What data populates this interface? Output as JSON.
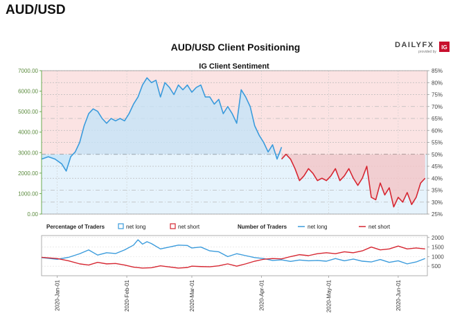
{
  "page": {
    "title": "AUD/USD"
  },
  "brand": {
    "name": "DAILYFX",
    "sub": "provided by",
    "badge": "IG"
  },
  "chart_data": [
    {
      "type": "line",
      "title": "AUD/USD Client Positioning",
      "subtitle": "IG Client Sentiment",
      "price_axis": {
        "ticks": [
          "0.00",
          "1000.00",
          "2000.00",
          "3000.00",
          "4000.00",
          "5000.00",
          "6000.00",
          "7000.00"
        ],
        "ylim": [
          0,
          7000
        ]
      },
      "pct_axis": {
        "ticks": [
          "25%",
          "30%",
          "35%",
          "40%",
          "45%",
          "50%",
          "55%",
          "60%",
          "65%",
          "70%",
          "75%",
          "80%",
          "85%"
        ],
        "ylim": [
          25,
          85
        ]
      },
      "x_ticks": [
        "2020-Jan-01",
        "2020-Feb-01",
        "2020-Mar-01",
        "2020-Apr-01",
        "2020-May-01",
        "2020-Jun-01"
      ],
      "x_tick_days": [
        0,
        31,
        60,
        91,
        121,
        152
      ],
      "xlim_days": [
        -7,
        165
      ],
      "grid": true,
      "series": [
        {
          "name": "Percentage net long",
          "color_fill": "#daedfa",
          "color_line": "#3a9bdc",
          "points": [
            [
              -7,
              48
            ],
            [
              -4,
              49
            ],
            [
              -1,
              48
            ],
            [
              2,
              46
            ],
            [
              4,
              43
            ],
            [
              6,
              49
            ],
            [
              8,
              51
            ],
            [
              10,
              55
            ],
            [
              12,
              62
            ],
            [
              14,
              67
            ],
            [
              16,
              69
            ],
            [
              18,
              68
            ],
            [
              20,
              65
            ],
            [
              22,
              63
            ],
            [
              24,
              65
            ],
            [
              26,
              64
            ],
            [
              28,
              65
            ],
            [
              30,
              64
            ],
            [
              32,
              67
            ],
            [
              34,
              71
            ],
            [
              36,
              74
            ],
            [
              38,
              79
            ],
            [
              40,
              82
            ],
            [
              42,
              80
            ],
            [
              44,
              81
            ],
            [
              46,
              74
            ],
            [
              48,
              80
            ],
            [
              50,
              78
            ],
            [
              52,
              75
            ],
            [
              54,
              79
            ],
            [
              56,
              77
            ],
            [
              58,
              79
            ],
            [
              60,
              76
            ],
            [
              62,
              78
            ],
            [
              64,
              79
            ],
            [
              66,
              74
            ],
            [
              68,
              74
            ],
            [
              70,
              71
            ],
            [
              72,
              73
            ],
            [
              74,
              67
            ],
            [
              76,
              70
            ],
            [
              78,
              67
            ],
            [
              80,
              63
            ],
            [
              82,
              77
            ],
            [
              84,
              74
            ],
            [
              86,
              70
            ],
            [
              88,
              62
            ],
            [
              90,
              58
            ],
            [
              92,
              55
            ],
            [
              94,
              51
            ],
            [
              96,
              54
            ],
            [
              98,
              48
            ],
            [
              100,
              53
            ]
          ]
        },
        {
          "name": "Percentage net short",
          "color_fill": "#fadada",
          "color_line": "#d62631",
          "points": [
            [
              100,
              48
            ],
            [
              102,
              50
            ],
            [
              104,
              48
            ],
            [
              106,
              44
            ],
            [
              108,
              39
            ],
            [
              110,
              41
            ],
            [
              112,
              44
            ],
            [
              114,
              42
            ],
            [
              116,
              39
            ],
            [
              118,
              40
            ],
            [
              120,
              39
            ],
            [
              122,
              41
            ],
            [
              124,
              44
            ],
            [
              126,
              39
            ],
            [
              128,
              41
            ],
            [
              130,
              44
            ],
            [
              132,
              40
            ],
            [
              134,
              37
            ],
            [
              136,
              40
            ],
            [
              138,
              45
            ],
            [
              140,
              32
            ],
            [
              142,
              31
            ],
            [
              144,
              38
            ],
            [
              146,
              33
            ],
            [
              148,
              36
            ],
            [
              150,
              28
            ],
            [
              152,
              32
            ],
            [
              154,
              30
            ],
            [
              156,
              34
            ],
            [
              158,
              29
            ],
            [
              160,
              32
            ],
            [
              162,
              38
            ],
            [
              164,
              40
            ]
          ]
        }
      ],
      "lower": {
        "legend": {
          "pct_label": "Percentage of Traders",
          "pct_long": "net long",
          "pct_short": "net short",
          "num_label": "Number of Traders",
          "num_long": "net long",
          "num_short": "net short"
        },
        "y_ticks": [
          "500",
          "1000",
          "1500",
          "2000"
        ],
        "ylim": [
          0,
          2100
        ],
        "series": [
          {
            "name": "net long",
            "color": "#3a9bdc",
            "points": [
              [
                -7,
                950
              ],
              [
                0,
                860
              ],
              [
                5,
                960
              ],
              [
                10,
                1150
              ],
              [
                14,
                1350
              ],
              [
                18,
                1080
              ],
              [
                22,
                1200
              ],
              [
                26,
                1160
              ],
              [
                30,
                1350
              ],
              [
                34,
                1600
              ],
              [
                36,
                1880
              ],
              [
                38,
                1650
              ],
              [
                40,
                1780
              ],
              [
                42,
                1680
              ],
              [
                46,
                1400
              ],
              [
                50,
                1500
              ],
              [
                54,
                1600
              ],
              [
                58,
                1580
              ],
              [
                60,
                1450
              ],
              [
                64,
                1500
              ],
              [
                68,
                1300
              ],
              [
                72,
                1250
              ],
              [
                76,
                1000
              ],
              [
                80,
                1150
              ],
              [
                84,
                1050
              ],
              [
                88,
                950
              ],
              [
                92,
                900
              ],
              [
                96,
                800
              ],
              [
                100,
                830
              ],
              [
                104,
                750
              ],
              [
                108,
                820
              ],
              [
                112,
                780
              ],
              [
                116,
                800
              ],
              [
                120,
                760
              ],
              [
                124,
                900
              ],
              [
                128,
                780
              ],
              [
                132,
                870
              ],
              [
                136,
                760
              ],
              [
                140,
                720
              ],
              [
                144,
                850
              ],
              [
                148,
                700
              ],
              [
                152,
                780
              ],
              [
                156,
                620
              ],
              [
                160,
                720
              ],
              [
                164,
                900
              ]
            ]
          },
          {
            "name": "net short",
            "color": "#d62631",
            "points": [
              [
                -7,
                960
              ],
              [
                0,
                900
              ],
              [
                5,
                780
              ],
              [
                10,
                620
              ],
              [
                14,
                560
              ],
              [
                18,
                700
              ],
              [
                22,
                620
              ],
              [
                26,
                640
              ],
              [
                30,
                560
              ],
              [
                34,
                450
              ],
              [
                38,
                400
              ],
              [
                42,
                420
              ],
              [
                46,
                520
              ],
              [
                50,
                460
              ],
              [
                54,
                400
              ],
              [
                58,
                430
              ],
              [
                60,
                500
              ],
              [
                64,
                480
              ],
              [
                68,
                470
              ],
              [
                72,
                520
              ],
              [
                76,
                620
              ],
              [
                80,
                500
              ],
              [
                84,
                620
              ],
              [
                88,
                760
              ],
              [
                92,
                860
              ],
              [
                96,
                900
              ],
              [
                100,
                880
              ],
              [
                104,
                1000
              ],
              [
                108,
                1100
              ],
              [
                112,
                1050
              ],
              [
                116,
                1150
              ],
              [
                120,
                1200
              ],
              [
                124,
                1150
              ],
              [
                128,
                1250
              ],
              [
                132,
                1200
              ],
              [
                136,
                1300
              ],
              [
                140,
                1500
              ],
              [
                144,
                1350
              ],
              [
                148,
                1400
              ],
              [
                152,
                1550
              ],
              [
                156,
                1400
              ],
              [
                160,
                1450
              ],
              [
                164,
                1400
              ]
            ]
          }
        ]
      }
    }
  ]
}
